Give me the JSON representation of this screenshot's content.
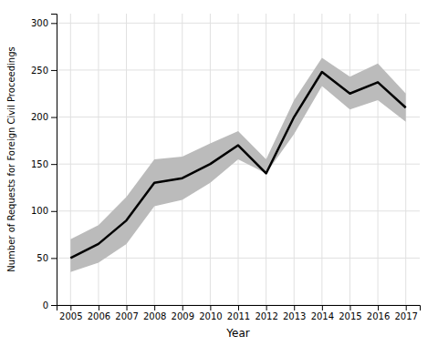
{
  "chart_data": {
    "type": "line",
    "x": [
      2005,
      2006,
      2007,
      2008,
      2009,
      2010,
      2011,
      2012,
      2013,
      2014,
      2015,
      2016,
      2017
    ],
    "series": [
      {
        "type": "band",
        "color": "#BBBBBB",
        "upper": [
          70,
          85,
          115,
          155,
          158,
          172,
          185,
          155,
          218,
          263,
          243,
          257,
          225
        ],
        "lower": [
          35,
          45,
          65,
          105,
          112,
          130,
          155,
          140,
          182,
          233,
          208,
          218,
          195
        ]
      },
      {
        "type": "line",
        "color": "#000000",
        "values": [
          50,
          65,
          90,
          130,
          135,
          150,
          170,
          140,
          200,
          248,
          225,
          237,
          210
        ]
      }
    ],
    "xlabel": "Year",
    "ylabel": "Number of Requests for Foreign Civil Proceedings",
    "xlim": [
      2004.5,
      2017.5
    ],
    "xticks": [
      2005,
      2006,
      2007,
      2008,
      2009,
      2010,
      2011,
      2012,
      2013,
      2014,
      2015,
      2016,
      2017
    ],
    "ylim": [
      0,
      310
    ],
    "yticks": [
      0,
      50,
      100,
      150,
      200,
      250,
      300
    ],
    "grid": true
  }
}
